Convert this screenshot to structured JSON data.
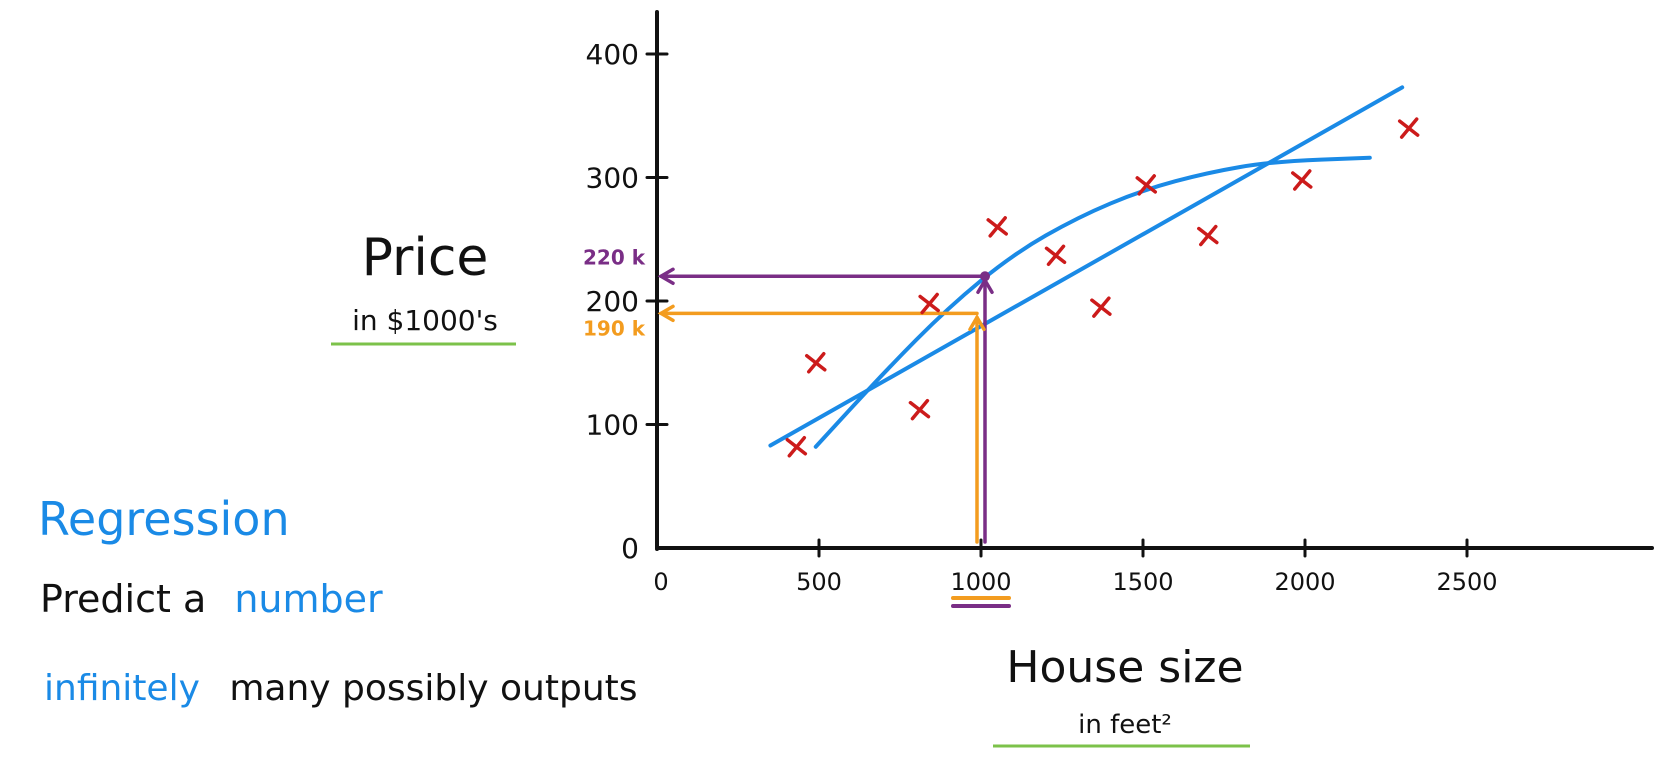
{
  "chart_data": {
    "type": "scatter",
    "ylabel": "Price",
    "ylabel_sub": "in $1000's",
    "xlabel": "House size",
    "xlabel_sub": "in feet²",
    "x_ticks": [
      "0",
      "500",
      "1000",
      "1500",
      "2000",
      "2500"
    ],
    "x_tick_values": [
      0,
      500,
      1000,
      1500,
      2000,
      2500
    ],
    "y_ticks": [
      "0",
      "100",
      "200",
      "300",
      "400"
    ],
    "y_tick_values": [
      0,
      100,
      200,
      300,
      400
    ],
    "xlim": [
      0,
      3050
    ],
    "ylim": [
      0,
      425
    ],
    "grid": false,
    "points": [
      {
        "x": 430,
        "y": 82
      },
      {
        "x": 490,
        "y": 150
      },
      {
        "x": 810,
        "y": 112
      },
      {
        "x": 840,
        "y": 198
      },
      {
        "x": 1050,
        "y": 260
      },
      {
        "x": 1230,
        "y": 237
      },
      {
        "x": 1370,
        "y": 195
      },
      {
        "x": 1510,
        "y": 294
      },
      {
        "x": 1700,
        "y": 253
      },
      {
        "x": 1990,
        "y": 298
      },
      {
        "x": 2320,
        "y": 340
      }
    ],
    "fit_line": [
      {
        "x": 350,
        "y": 83
      },
      {
        "x": 2300,
        "y": 373
      }
    ],
    "fit_curve": [
      {
        "x": 490,
        "y": 82
      },
      {
        "x": 700,
        "y": 142
      },
      {
        "x": 900,
        "y": 195
      },
      {
        "x": 1100,
        "y": 238
      },
      {
        "x": 1300,
        "y": 268
      },
      {
        "x": 1500,
        "y": 290
      },
      {
        "x": 1700,
        "y": 304
      },
      {
        "x": 1900,
        "y": 313
      },
      {
        "x": 2200,
        "y": 316
      }
    ],
    "annotations": [
      {
        "x": 1000,
        "y": 220,
        "label": "220 k",
        "color": "#7a2e86"
      },
      {
        "x": 1000,
        "y": 190,
        "label": "190 k",
        "color": "#f39c1f"
      }
    ],
    "highlight_x_label": "1000"
  },
  "notes": {
    "title": "Regression",
    "line1_part1": "Predict a",
    "line1_part2": "number",
    "line2_part1": "infinitely",
    "line2_part2": "many possibly outputs"
  },
  "colors": {
    "blue": "#1a8ae6",
    "red": "#cc1b1b",
    "purple": "#7a2e86",
    "orange": "#f39c1f",
    "green": "#7cc24a",
    "black": "#111111"
  }
}
